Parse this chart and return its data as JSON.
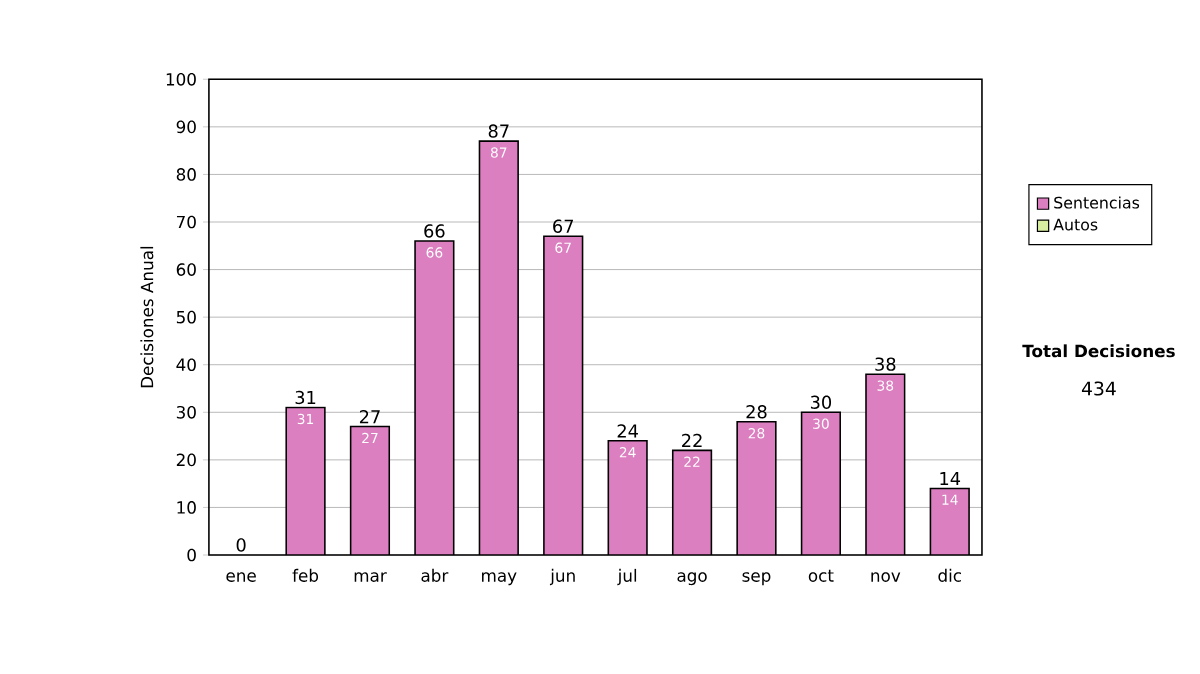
{
  "chart_data": {
    "type": "bar",
    "stacked": true,
    "ylabel": "Decisiones Anual",
    "categories": [
      "ene",
      "feb",
      "mar",
      "abr",
      "may",
      "jun",
      "jul",
      "ago",
      "sep",
      "oct",
      "nov",
      "dic"
    ],
    "series": [
      {
        "name": "Sentencias",
        "color": "#dc7fc0",
        "values": [
          0,
          31,
          27,
          66,
          87,
          67,
          24,
          22,
          28,
          30,
          38,
          14
        ],
        "value_labels": [
          null,
          "31",
          "27",
          "66",
          "87",
          "67",
          "24",
          "22",
          "28",
          "30",
          "38",
          "14"
        ]
      },
      {
        "name": "Autos",
        "color": "#d8eea0",
        "values": [
          null,
          null,
          null,
          null,
          null,
          null,
          null,
          null,
          null,
          null,
          null,
          null
        ]
      }
    ],
    "totals": [
      "0",
      "31",
      "27",
      "66",
      "87",
      "67",
      "24",
      "22",
      "28",
      "30",
      "38",
      "14"
    ],
    "ylim": [
      0,
      100
    ],
    "yticks": [
      0,
      10,
      20,
      30,
      40,
      50,
      60,
      70,
      80,
      90,
      100
    ],
    "grid": "y",
    "legend": "right",
    "annotations": [
      "Total Decisiones",
      "434"
    ]
  }
}
